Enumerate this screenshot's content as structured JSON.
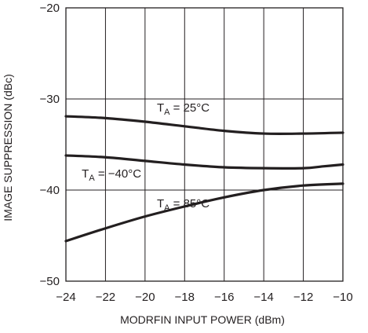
{
  "chart_data": {
    "type": "line",
    "title": "",
    "xlabel": "MODRFIN INPUT POWER (dBm)",
    "ylabel": "IMAGE SUPPRESSION (dBc)",
    "xlim": [
      -24,
      -10
    ],
    "ylim": [
      -50,
      -20
    ],
    "x_ticks": [
      -24,
      -22,
      -20,
      -18,
      -16,
      -14,
      -12,
      -10
    ],
    "y_ticks": [
      -20,
      -30,
      -40,
      -50
    ],
    "x_tick_labels": [
      "−24",
      "−22",
      "−20",
      "−18",
      "−16",
      "−14",
      "−12",
      "−10"
    ],
    "y_tick_labels": [
      "−20",
      "−30",
      "−40",
      "−50"
    ],
    "x_grid": [
      -22,
      -20,
      -18,
      -16,
      -14,
      -12
    ],
    "y_grid": [
      -30,
      -40
    ],
    "series": [
      {
        "annotation": {
          "main": "T",
          "sub": "A",
          "rest": " = 25°C",
          "x": -19.4,
          "y": -31.4
        },
        "x": [
          -24,
          -22,
          -20,
          -18,
          -16,
          -14,
          -12,
          -10
        ],
        "y": [
          -31.9,
          -32.1,
          -32.5,
          -33.0,
          -33.5,
          -33.8,
          -33.8,
          -33.7
        ]
      },
      {
        "annotation": {
          "main": "T",
          "sub": "A",
          "rest": " = −40°C",
          "x": -23.2,
          "y": -38.6
        },
        "x": [
          -24,
          -22,
          -20,
          -18,
          -16,
          -14,
          -12,
          -11,
          -10
        ],
        "y": [
          -36.2,
          -36.4,
          -36.8,
          -37.2,
          -37.5,
          -37.6,
          -37.6,
          -37.4,
          -37.2
        ]
      },
      {
        "annotation": {
          "main": "T",
          "sub": "A",
          "rest": " = 85°C",
          "x": -19.4,
          "y": -41.9
        },
        "x": [
          -24,
          -22,
          -20,
          -18,
          -16,
          -14,
          -12,
          -10
        ],
        "y": [
          -45.6,
          -44.2,
          -42.9,
          -41.8,
          -40.8,
          -40.0,
          -39.5,
          -39.3
        ]
      }
    ]
  },
  "colors": {
    "line": "#231f20",
    "grid": "#231f20",
    "background": "#ffffff"
  }
}
